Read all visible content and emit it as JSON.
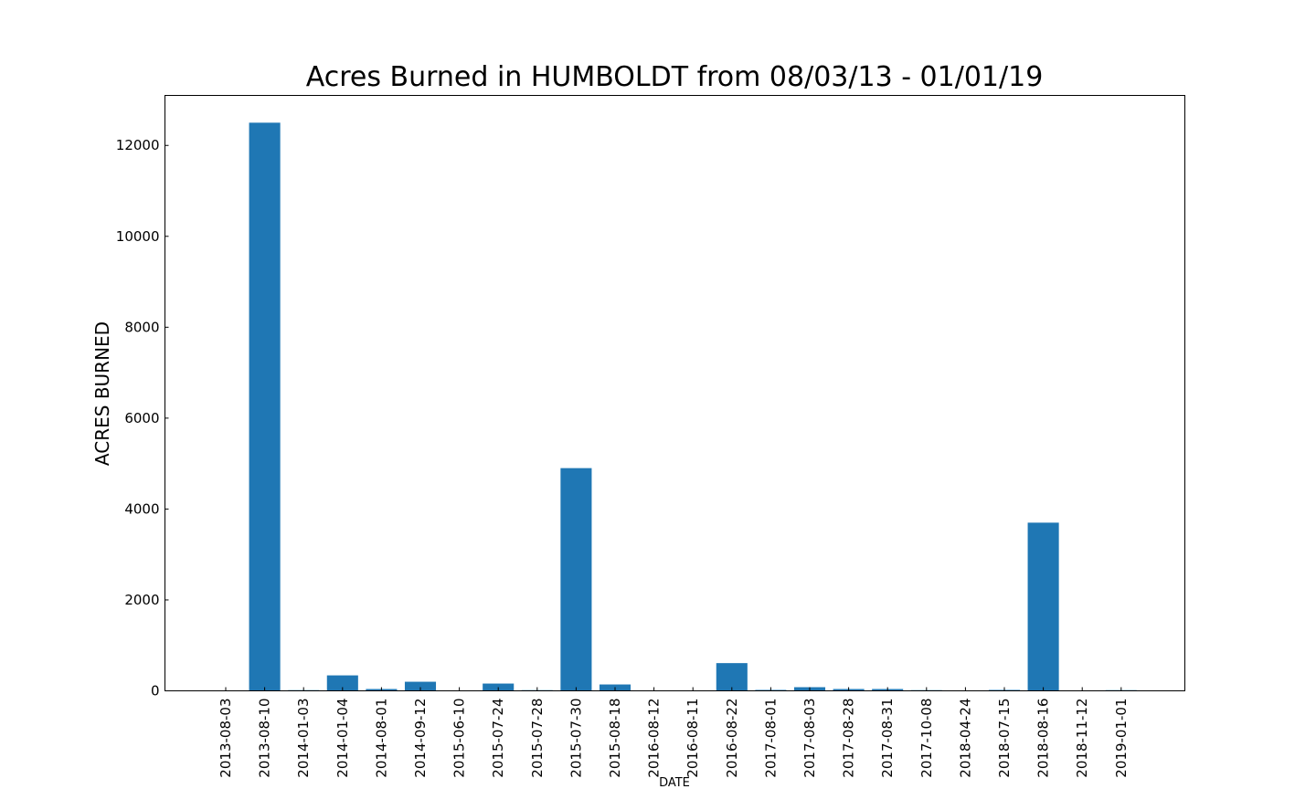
{
  "chart_data": {
    "type": "bar",
    "title": "Acres Burned in HUMBOLDT from 08/03/13 - 01/01/19",
    "xlabel": "DATE",
    "ylabel": "ACRES BURNED",
    "ylim": [
      0,
      13100
    ],
    "yticks": [
      0,
      2000,
      4000,
      6000,
      8000,
      10000,
      12000
    ],
    "grid": false,
    "legend": "none",
    "bar_color": "#1f77b4",
    "categories": [
      "2013-08-03",
      "2013-08-10",
      "2014-01-03",
      "2014-01-04",
      "2014-08-01",
      "2014-09-12",
      "2015-06-10",
      "2015-07-24",
      "2015-07-28",
      "2015-07-30",
      "2015-08-18",
      "2016-08-12",
      "2016-08-11",
      "2016-08-22",
      "2017-08-01",
      "2017-08-03",
      "2017-08-28",
      "2017-08-31",
      "2017-10-08",
      "2018-04-24",
      "2018-07-15",
      "2018-08-16",
      "2018-11-12",
      "2019-01-01"
    ],
    "values": [
      0,
      12500,
      15,
      340,
      40,
      200,
      10,
      160,
      15,
      4900,
      140,
      10,
      10,
      610,
      20,
      80,
      40,
      40,
      15,
      0,
      20,
      3700,
      0,
      15
    ]
  }
}
